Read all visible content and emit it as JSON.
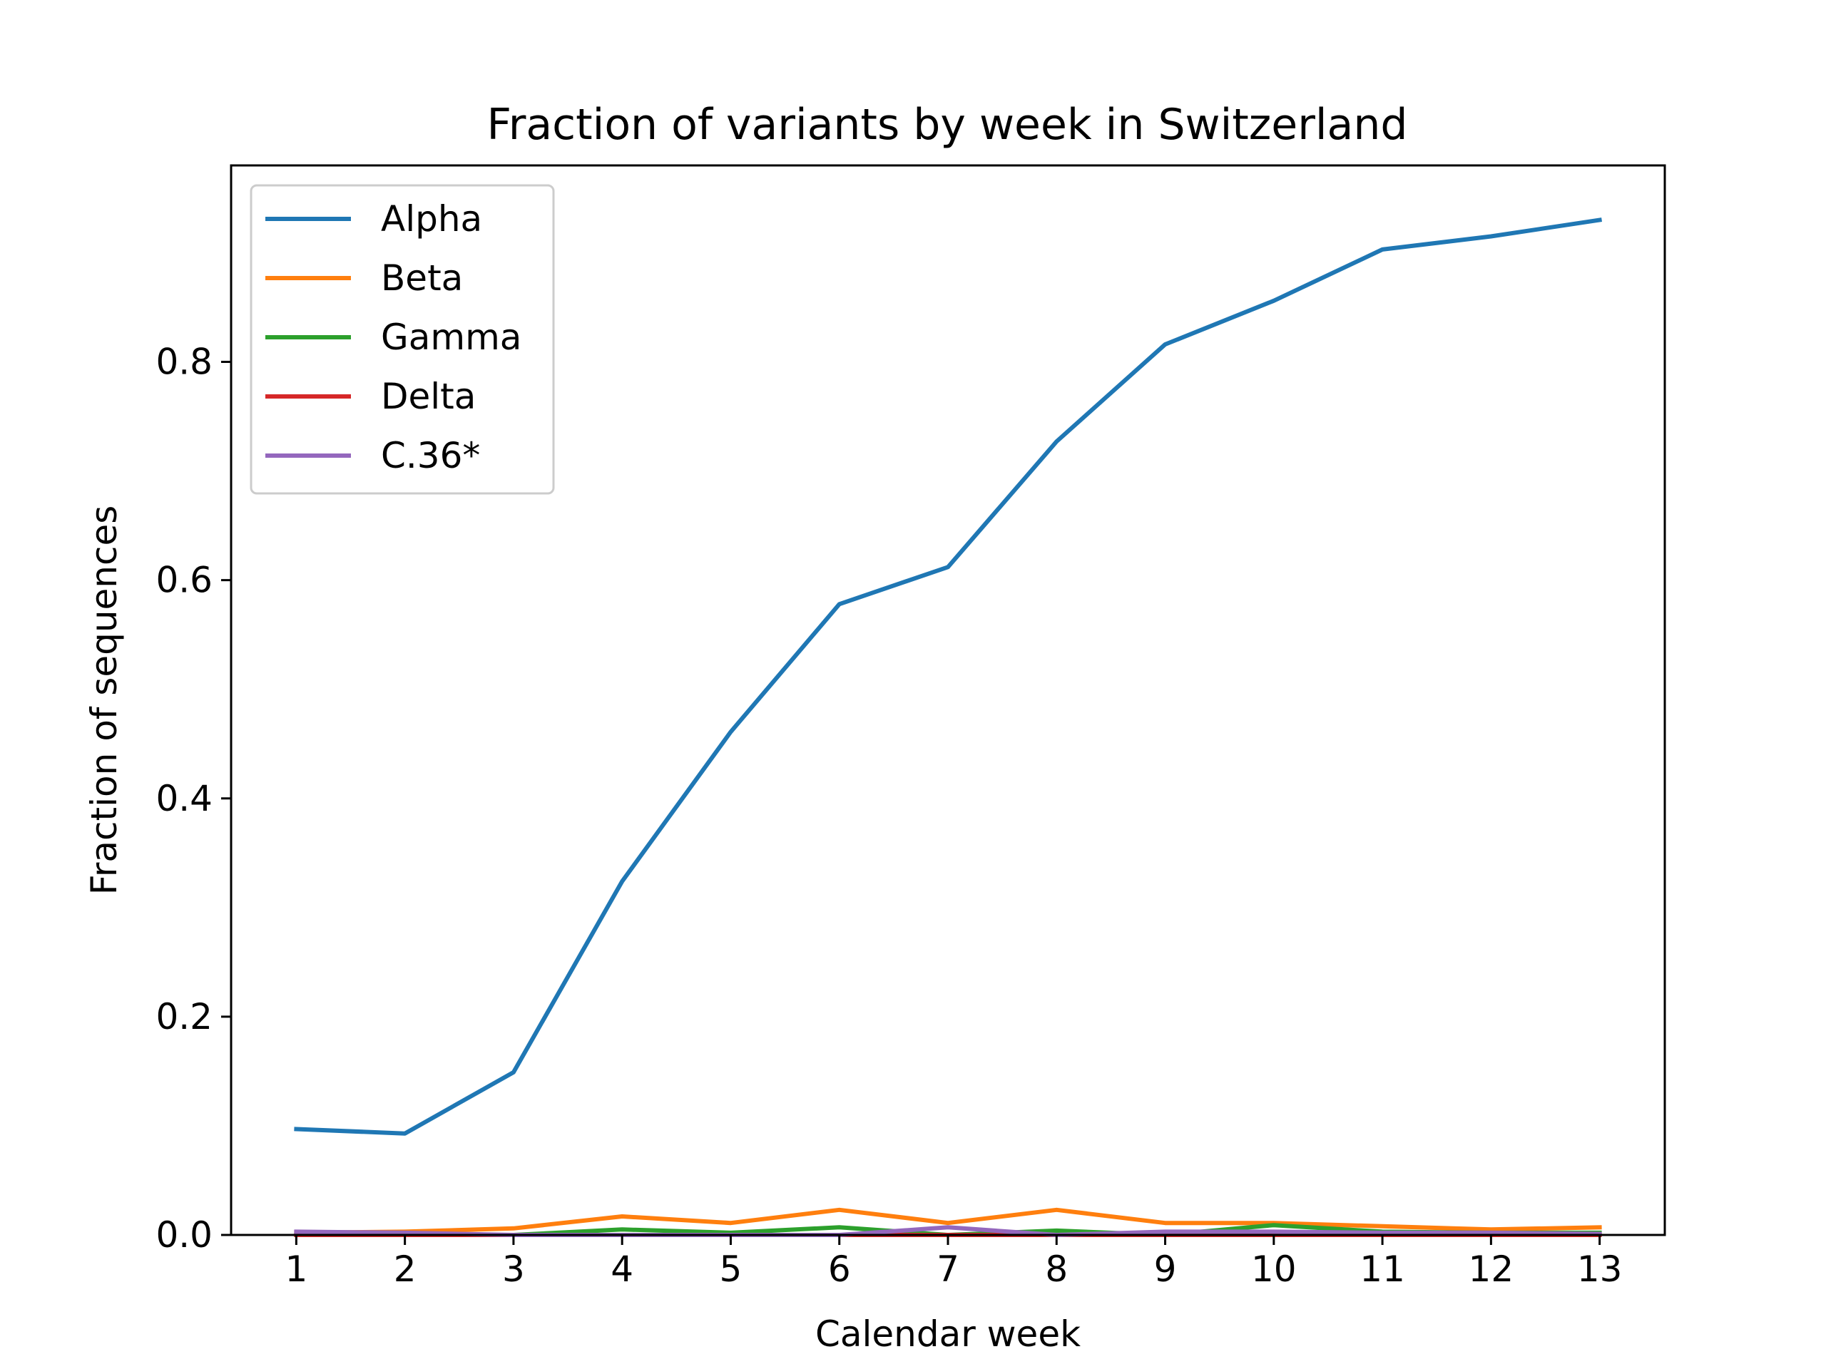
{
  "chart_data": {
    "type": "line",
    "title": "Fraction of variants by week in Switzerland",
    "xlabel": "Calendar week",
    "ylabel": "Fraction of sequences",
    "x": [
      1,
      2,
      3,
      4,
      5,
      6,
      7,
      8,
      9,
      10,
      11,
      12,
      13
    ],
    "xlim": [
      0.4,
      13.6
    ],
    "ylim": [
      0.0,
      0.98
    ],
    "x_ticks": [
      "1",
      "2",
      "3",
      "4",
      "5",
      "6",
      "7",
      "8",
      "9",
      "10",
      "11",
      "12",
      "13"
    ],
    "y_ticks": [
      {
        "value": 0.0,
        "label": "0.0"
      },
      {
        "value": 0.2,
        "label": "0.2"
      },
      {
        "value": 0.4,
        "label": "0.4"
      },
      {
        "value": 0.6,
        "label": "0.6"
      },
      {
        "value": 0.8,
        "label": "0.8"
      }
    ],
    "grid": false,
    "legend_position": "top-left",
    "series": [
      {
        "name": "Alpha",
        "color": "#1f77b4",
        "values": [
          0.097,
          0.093,
          0.149,
          0.324,
          0.461,
          0.578,
          0.612,
          0.727,
          0.816,
          0.856,
          0.903,
          0.915,
          0.93
        ]
      },
      {
        "name": "Beta",
        "color": "#ff7f0e",
        "values": [
          0.002,
          0.003,
          0.006,
          0.017,
          0.011,
          0.023,
          0.011,
          0.023,
          0.011,
          0.011,
          0.008,
          0.005,
          0.007
        ]
      },
      {
        "name": "Gamma",
        "color": "#2ca02c",
        "values": [
          0.0,
          0.0,
          0.0,
          0.005,
          0.002,
          0.007,
          0.0,
          0.004,
          0.0,
          0.009,
          0.003,
          0.002,
          0.002
        ]
      },
      {
        "name": "Delta",
        "color": "#d62728",
        "values": [
          0.0,
          0.0,
          0.0,
          0.0,
          0.0,
          0.0,
          0.0,
          0.0,
          0.0,
          0.0,
          0.0,
          0.0,
          0.0
        ]
      },
      {
        "name": "C.36*",
        "color": "#9467bd",
        "values": [
          0.003,
          0.002,
          0.0,
          0.0,
          0.0,
          0.0,
          0.007,
          0.0,
          0.003,
          0.003,
          0.002,
          0.002,
          0.001
        ]
      }
    ]
  }
}
